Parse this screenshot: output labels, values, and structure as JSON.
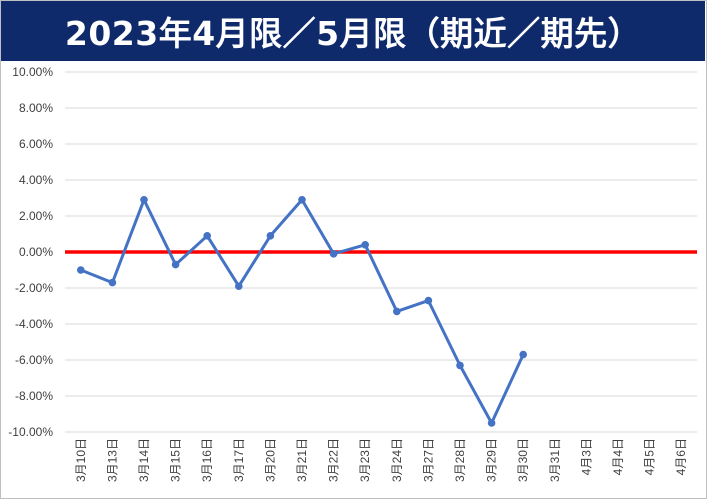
{
  "chart_data": {
    "type": "line",
    "title": "2023年4月限／5月限（期近／期先）",
    "xlabel": "",
    "ylabel": "",
    "categories": [
      "3月10日",
      "3月13日",
      "3月14日",
      "3月15日",
      "3月16日",
      "3月17日",
      "3月20日",
      "3月21日",
      "3月22日",
      "3月23日",
      "3月24日",
      "3月27日",
      "3月28日",
      "3月29日",
      "3月30日",
      "3月31日",
      "4月3日",
      "4月4日",
      "4月5日",
      "4月6日"
    ],
    "series": [
      {
        "values": [
          -1.0,
          -1.7,
          2.9,
          -0.7,
          0.9,
          -1.9,
          0.9,
          2.9,
          -0.1,
          0.4,
          -3.3,
          -2.7,
          -6.3,
          -9.5,
          -5.7,
          null,
          null,
          null,
          null,
          null
        ]
      }
    ],
    "ylim": [
      -10,
      10
    ],
    "y_ticks": [
      "10.00%",
      "8.00%",
      "6.00%",
      "4.00%",
      "2.00%",
      "0.00%",
      "-2.00%",
      "-4.00%",
      "-6.00%",
      "-8.00%",
      "-10.00%"
    ],
    "y_tick_values": [
      10,
      8,
      6,
      4,
      2,
      0,
      -2,
      -4,
      -6,
      -8,
      -10
    ],
    "zero_line": 0,
    "grid": true,
    "legend": "none",
    "colors": {
      "series": "#4472c4",
      "zero_line": "#ff0000",
      "grid": "#d9d9d9",
      "banner": "#0f2a6b",
      "title_text": "#ffffff"
    }
  }
}
